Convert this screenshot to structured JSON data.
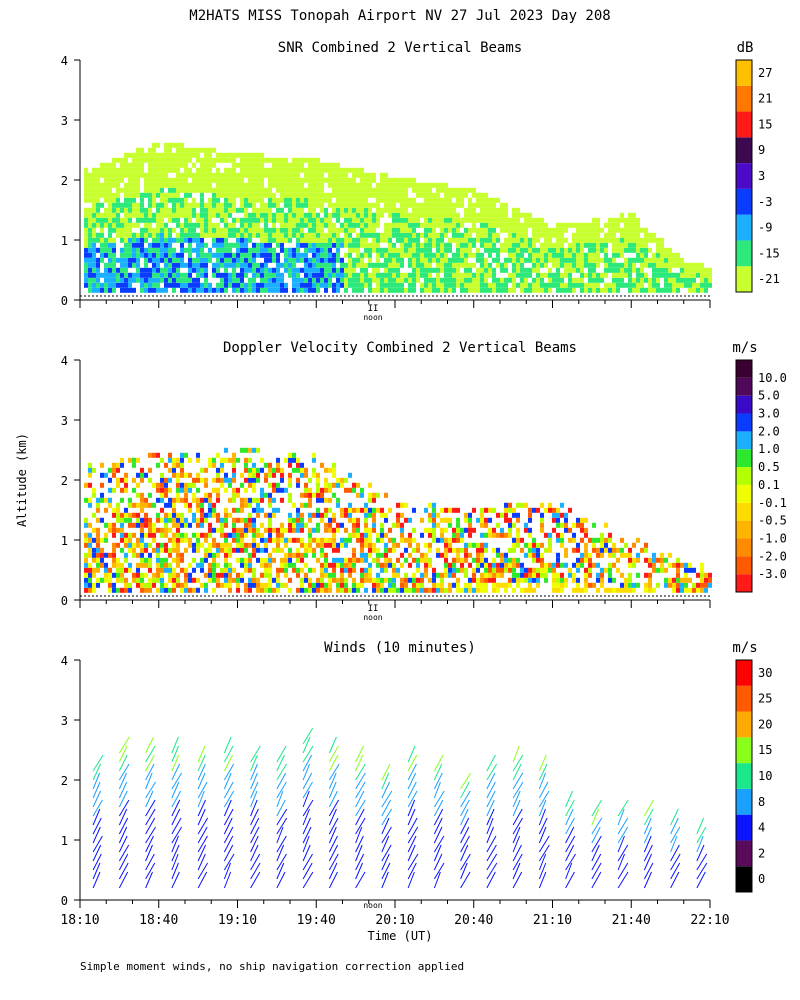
{
  "figure": {
    "title": "M2HATS MISS Tonopah Airport NV  27 Jul 2023 Day 208",
    "ylabel": "Altitude (km)",
    "xlabel": "Time (UT)",
    "footnote": "Simple moment winds, no ship navigation correction applied",
    "noon_label": "noon",
    "noon_marker": "II"
  },
  "chart_data": [
    {
      "type": "heatmap",
      "title": "SNR Combined 2 Vertical Beams",
      "units": "dB",
      "xlim": [
        "18:10",
        "22:10"
      ],
      "ylim": [
        0,
        4
      ],
      "yticks": [
        "0",
        "1",
        "2",
        "3",
        "4"
      ],
      "show_time_labels": false,
      "colorbar": {
        "labels": [
          "-21",
          "-15",
          "-9",
          "-3",
          "3",
          "9",
          "15",
          "21",
          "27"
        ],
        "colors": [
          "#c8ff2e",
          "#2de87a",
          "#1ab0ff",
          "#0a3cff",
          "#4a0ac8",
          "#3c0850",
          "#ff1a1a",
          "#ff7800",
          "#ffc000"
        ]
      },
      "description_values": {
        "echo_top_km_by_hour": {
          "18:10": 2.1,
          "18:40": 2.6,
          "19:10": 2.4,
          "19:40": 2.3,
          "20:10": 2.0,
          "20:40": 1.8,
          "21:10": 1.2,
          "21:40": 1.4,
          "22:00": 0.6
        }
      }
    },
    {
      "type": "heatmap",
      "title": "Doppler Velocity Combined 2 Vertical Beams",
      "units": "m/s",
      "xlim": [
        "18:10",
        "22:10"
      ],
      "ylim": [
        0,
        4
      ],
      "yticks": [
        "0",
        "1",
        "2",
        "3",
        "4"
      ],
      "show_time_labels": false,
      "colorbar": {
        "labels": [
          "-3.0",
          "-2.0",
          "-1.0",
          "-0.5",
          "-0.1",
          "0.1",
          "0.5",
          "1.0",
          "2.0",
          "3.0",
          "5.0",
          "10.0"
        ],
        "colors": [
          "#ff1a1a",
          "#ff5a00",
          "#ff8c00",
          "#ffb400",
          "#ffdc00",
          "#f0ff00",
          "#b4ff00",
          "#2ee82e",
          "#1ab0ff",
          "#0a3cff",
          "#3a0ac8",
          "#50085a",
          "#3a0030"
        ]
      },
      "description_values": {
        "echo_top_km_by_hour": {
          "18:10": 2.2,
          "18:40": 2.4,
          "19:10": 2.5,
          "19:40": 2.4,
          "20:10": 1.6,
          "20:40": 1.5,
          "21:10": 1.6,
          "21:40": 1.0,
          "22:00": 0.6
        }
      }
    },
    {
      "type": "scatter",
      "title": "Winds (10 minutes)",
      "units": "m/s",
      "xlim": [
        "18:10",
        "22:10"
      ],
      "ylim": [
        0,
        4
      ],
      "yticks": [
        "0",
        "1",
        "2",
        "3",
        "4"
      ],
      "xticks": [
        "18:10",
        "18:40",
        "19:10",
        "19:40",
        "20:10",
        "20:40",
        "21:10",
        "21:40",
        "22:10"
      ],
      "show_time_labels": true,
      "colorbar": {
        "labels": [
          "0",
          "2",
          "4",
          "8",
          "10",
          "15",
          "20",
          "25",
          "30"
        ],
        "colors": [
          "#000000",
          "#5a0a5a",
          "#0a14ff",
          "#1aa0ff",
          "#1ae88a",
          "#8aff1a",
          "#ffaa00",
          "#ff5a00",
          "#ff0000"
        ]
      },
      "wind_profile_tops_km": [
        2.2,
        2.5,
        2.5,
        2.5,
        2.4,
        2.5,
        2.4,
        2.3,
        2.6,
        2.5,
        2.3,
        2.0,
        2.4,
        2.2,
        1.9,
        2.2,
        2.3,
        2.2,
        1.6,
        1.4,
        1.5,
        1.4,
        1.3,
        1.1
      ]
    }
  ]
}
